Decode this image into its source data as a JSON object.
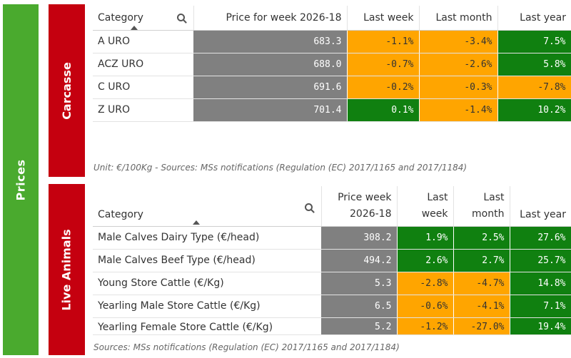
{
  "sidebar": {
    "label": "Prices"
  },
  "carcasse": {
    "label": "Carcasse",
    "headers": {
      "category": "Category",
      "price": "Price for week 2026-18",
      "last_week": "Last week",
      "last_month": "Last month",
      "last_year": "Last year"
    },
    "rows": [
      {
        "category": "A URO",
        "price": "683.3",
        "last_week": "-1.1%",
        "last_month": "-3.4%",
        "last_year": "7.5%"
      },
      {
        "category": "ACZ URO",
        "price": "688.0",
        "last_week": "-0.7%",
        "last_month": "-2.6%",
        "last_year": "5.8%"
      },
      {
        "category": "C URO",
        "price": "691.6",
        "last_week": "-0.2%",
        "last_month": "-0.3%",
        "last_year": "-7.8%"
      },
      {
        "category": "Z URO",
        "price": "701.4",
        "last_week": "0.1%",
        "last_month": "-1.4%",
        "last_year": "10.2%"
      }
    ],
    "note": "Unit: €/100Kg - Sources: MSs notifications (Regulation (EC) 2017/1165 and 2017/1184)"
  },
  "live": {
    "label": "Live Animals",
    "headers": {
      "category": "Category",
      "price_l1": "Price week",
      "price_l2": "2026-18",
      "week_l1": "Last",
      "week_l2": "week",
      "month_l1": "Last",
      "month_l2": "month",
      "last_year": "Last year"
    },
    "rows": [
      {
        "category": "Male Calves Dairy Type (€/head)",
        "price": "308.2",
        "last_week": "1.9%",
        "last_month": "2.5%",
        "last_year": "27.6%"
      },
      {
        "category": "Male Calves Beef Type (€/head)",
        "price": "494.2",
        "last_week": "2.6%",
        "last_month": "2.7%",
        "last_year": "25.7%"
      },
      {
        "category": "Young Store Cattle (€/Kg)",
        "price": "5.3",
        "last_week": "-2.8%",
        "last_month": "-4.7%",
        "last_year": "14.8%"
      },
      {
        "category": "Yearling Male Store Cattle (€/Kg)",
        "price": "6.5",
        "last_week": "-0.6%",
        "last_month": "-4.1%",
        "last_year": "7.1%"
      },
      {
        "category": "Yearling Female Store Cattle (€/Kg)",
        "price": "5.2",
        "last_week": "-1.2%",
        "last_month": "-27.0%",
        "last_year": "19.4%"
      }
    ],
    "note": "Sources: MSs notifications (Regulation (EC) 2017/1165 and 2017/1184)"
  },
  "colors": {
    "green_bar": "#4aaa2e",
    "red_bar": "#c5000f",
    "price_cell": "#808080",
    "orange_cell": "#ffa500",
    "green_cell": "#108010"
  }
}
